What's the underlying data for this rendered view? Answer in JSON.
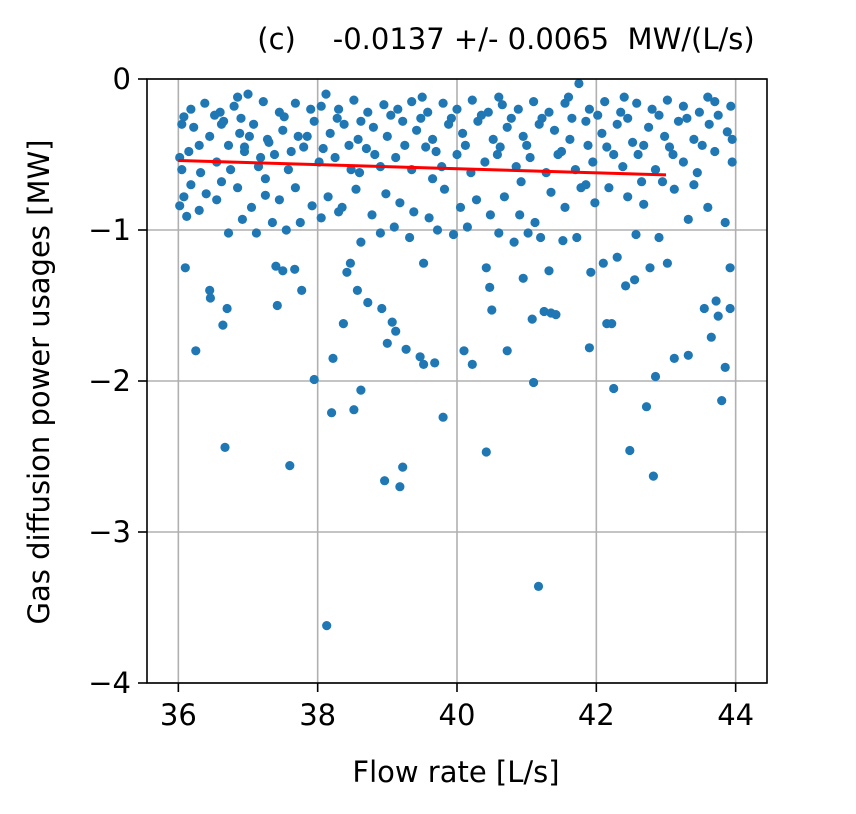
{
  "chart_data": {
    "type": "scatter",
    "title": "(c)    -0.0137 +/- 0.0065  MW/(L/s)",
    "xlabel": "Flow rate [L/s]",
    "ylabel": "Gas diffusion power usages [MW]",
    "xlim": [
      35.55,
      44.45
    ],
    "ylim": [
      -4,
      0
    ],
    "xticks": [
      36,
      38,
      40,
      42,
      44
    ],
    "yticks": [
      0,
      -1,
      -2,
      -3,
      -4
    ],
    "xtick_labels": [
      "36",
      "38",
      "40",
      "42",
      "44"
    ],
    "ytick_labels": [
      "0",
      "−1",
      "−2",
      "−3",
      "−4"
    ],
    "grid": true,
    "colors": {
      "points": "#1f77b4",
      "fit": "#ff0000",
      "grid": "#b0b0b0"
    },
    "fit_line": {
      "x": [
        36.0,
        43.0
      ],
      "y": [
        -0.54,
        -0.635
      ]
    },
    "series": [
      {
        "points": [
          [
            36.02,
            -0.84
          ],
          [
            36.1,
            -1.25
          ],
          [
            36.25,
            -1.8
          ],
          [
            36.45,
            -1.4
          ],
          [
            36.46,
            -1.45
          ],
          [
            36.64,
            -1.63
          ],
          [
            36.67,
            -2.44
          ],
          [
            36.7,
            -1.52
          ],
          [
            37.4,
            -1.24
          ],
          [
            37.42,
            -1.5
          ],
          [
            37.5,
            -1.27
          ],
          [
            37.6,
            -2.56
          ],
          [
            37.67,
            -1.26
          ],
          [
            37.77,
            -1.4
          ],
          [
            37.95,
            -1.99
          ],
          [
            38.13,
            -3.62
          ],
          [
            38.2,
            -2.21
          ],
          [
            38.22,
            -1.85
          ],
          [
            38.37,
            -1.62
          ],
          [
            38.47,
            -1.22
          ],
          [
            38.52,
            -2.19
          ],
          [
            38.57,
            -1.4
          ],
          [
            38.62,
            -2.06
          ],
          [
            38.72,
            -1.48
          ],
          [
            38.92,
            -1.52
          ],
          [
            38.96,
            -2.66
          ],
          [
            39.0,
            -1.75
          ],
          [
            39.07,
            -1.61
          ],
          [
            39.12,
            -1.67
          ],
          [
            39.18,
            -2.7
          ],
          [
            39.22,
            -2.57
          ],
          [
            39.27,
            -1.79
          ],
          [
            39.47,
            -1.84
          ],
          [
            39.52,
            -1.89
          ],
          [
            39.68,
            -1.88
          ],
          [
            39.8,
            -2.24
          ],
          [
            40.1,
            -1.8
          ],
          [
            40.22,
            -1.89
          ],
          [
            40.42,
            -2.47
          ],
          [
            40.47,
            -1.38
          ],
          [
            40.5,
            -1.53
          ],
          [
            40.72,
            -1.8
          ],
          [
            40.95,
            -1.32
          ],
          [
            41.08,
            -1.59
          ],
          [
            41.1,
            -2.01
          ],
          [
            41.17,
            -3.36
          ],
          [
            41.25,
            -1.54
          ],
          [
            41.35,
            -1.55
          ],
          [
            41.42,
            -1.56
          ],
          [
            41.9,
            -1.78
          ],
          [
            42.15,
            -1.62
          ],
          [
            42.22,
            -1.62
          ],
          [
            42.25,
            -2.05
          ],
          [
            42.42,
            -1.37
          ],
          [
            42.48,
            -2.46
          ],
          [
            42.55,
            -1.33
          ],
          [
            42.72,
            -2.17
          ],
          [
            42.82,
            -2.63
          ],
          [
            42.85,
            -1.97
          ],
          [
            43.12,
            -1.85
          ],
          [
            43.32,
            -1.83
          ],
          [
            43.65,
            -1.71
          ],
          [
            43.75,
            -1.57
          ],
          [
            43.8,
            -2.13
          ],
          [
            43.85,
            -1.91
          ],
          [
            43.92,
            -1.52
          ],
          [
            43.72,
            -1.47
          ],
          [
            43.55,
            -1.52
          ],
          [
            43.02,
            -1.22
          ],
          [
            42.9,
            -1.05
          ],
          [
            42.77,
            -1.25
          ],
          [
            42.57,
            -1.03
          ],
          [
            42.3,
            -1.18
          ],
          [
            42.1,
            -1.22
          ],
          [
            41.92,
            -1.28
          ],
          [
            41.72,
            -1.05
          ],
          [
            41.52,
            -1.07
          ],
          [
            41.32,
            -1.27
          ],
          [
            41.2,
            -1.05
          ],
          [
            41.02,
            -1.02
          ],
          [
            40.82,
            -1.08
          ],
          [
            40.6,
            -1.02
          ],
          [
            40.42,
            -1.25
          ],
          [
            40.15,
            -0.98
          ],
          [
            39.95,
            -1.03
          ],
          [
            39.72,
            -1.0
          ],
          [
            39.52,
            -1.22
          ],
          [
            39.32,
            -1.05
          ],
          [
            39.1,
            -0.98
          ],
          [
            38.9,
            -1.02
          ],
          [
            38.62,
            -1.08
          ],
          [
            38.42,
            -1.28
          ],
          [
            38.3,
            -0.88
          ],
          [
            38.05,
            -0.92
          ],
          [
            37.75,
            -0.95
          ],
          [
            37.55,
            -1.0
          ],
          [
            37.35,
            -0.95
          ],
          [
            37.12,
            -1.02
          ],
          [
            36.92,
            -0.93
          ],
          [
            36.72,
            -1.02
          ],
          [
            36.55,
            -0.8
          ],
          [
            36.3,
            -0.87
          ],
          [
            36.12,
            -0.91
          ],
          [
            36.05,
            -0.6
          ],
          [
            43.92,
            -1.25
          ],
          [
            43.85,
            -0.95
          ],
          [
            43.6,
            -0.85
          ],
          [
            43.32,
            -0.93
          ],
          [
            43.12,
            -0.73
          ],
          [
            42.95,
            -0.68
          ],
          [
            42.68,
            -0.83
          ],
          [
            42.45,
            -0.78
          ],
          [
            42.18,
            -0.72
          ],
          [
            41.98,
            -0.82
          ],
          [
            41.78,
            -0.72
          ],
          [
            41.55,
            -0.85
          ],
          [
            41.35,
            -0.75
          ],
          [
            41.12,
            -0.95
          ],
          [
            40.9,
            -0.9
          ],
          [
            40.68,
            -0.78
          ],
          [
            40.48,
            -0.9
          ],
          [
            40.28,
            -0.8
          ],
          [
            40.05,
            -0.85
          ],
          [
            39.82,
            -0.73
          ],
          [
            39.6,
            -0.92
          ],
          [
            39.38,
            -0.88
          ],
          [
            39.18,
            -0.82
          ],
          [
            38.98,
            -0.76
          ],
          [
            38.78,
            -0.9
          ],
          [
            38.55,
            -0.73
          ],
          [
            38.35,
            -0.85
          ],
          [
            38.15,
            -0.78
          ],
          [
            37.92,
            -0.84
          ],
          [
            37.68,
            -0.72
          ],
          [
            37.45,
            -0.8
          ],
          [
            37.25,
            -0.77
          ],
          [
            37.05,
            -0.85
          ],
          [
            36.85,
            -0.72
          ],
          [
            36.62,
            -0.68
          ],
          [
            36.4,
            -0.76
          ],
          [
            36.18,
            -0.7
          ],
          [
            36.08,
            -0.78
          ],
          [
            43.95,
            -0.55
          ],
          [
            43.7,
            -0.48
          ],
          [
            43.45,
            -0.62
          ],
          [
            43.25,
            -0.55
          ],
          [
            43.05,
            -0.45
          ],
          [
            42.85,
            -0.6
          ],
          [
            42.6,
            -0.5
          ],
          [
            42.38,
            -0.58
          ],
          [
            42.15,
            -0.45
          ],
          [
            41.95,
            -0.55
          ],
          [
            41.7,
            -0.6
          ],
          [
            41.5,
            -0.48
          ],
          [
            41.28,
            -0.62
          ],
          [
            41.05,
            -0.52
          ],
          [
            40.85,
            -0.58
          ],
          [
            40.62,
            -0.45
          ],
          [
            40.4,
            -0.55
          ],
          [
            40.2,
            -0.62
          ],
          [
            40.0,
            -0.5
          ],
          [
            39.78,
            -0.58
          ],
          [
            39.55,
            -0.45
          ],
          [
            39.35,
            -0.6
          ],
          [
            39.12,
            -0.52
          ],
          [
            38.9,
            -0.58
          ],
          [
            38.7,
            -0.46
          ],
          [
            38.48,
            -0.6
          ],
          [
            38.25,
            -0.52
          ],
          [
            38.02,
            -0.55
          ],
          [
            37.8,
            -0.45
          ],
          [
            37.58,
            -0.6
          ],
          [
            37.38,
            -0.5
          ],
          [
            37.15,
            -0.58
          ],
          [
            36.95,
            -0.48
          ],
          [
            36.75,
            -0.6
          ],
          [
            36.55,
            -0.55
          ],
          [
            36.32,
            -0.62
          ],
          [
            36.15,
            -0.48
          ],
          [
            36.02,
            -0.52
          ],
          [
            43.88,
            -0.35
          ],
          [
            43.62,
            -0.3
          ],
          [
            43.4,
            -0.4
          ],
          [
            43.18,
            -0.28
          ],
          [
            42.98,
            -0.38
          ],
          [
            42.75,
            -0.32
          ],
          [
            42.52,
            -0.42
          ],
          [
            42.3,
            -0.3
          ],
          [
            42.08,
            -0.36
          ],
          [
            41.85,
            -0.28
          ],
          [
            41.62,
            -0.4
          ],
          [
            41.4,
            -0.34
          ],
          [
            41.18,
            -0.3
          ],
          [
            40.95,
            -0.38
          ],
          [
            40.72,
            -0.32
          ],
          [
            40.52,
            -0.4
          ],
          [
            40.3,
            -0.28
          ],
          [
            40.08,
            -0.36
          ],
          [
            39.88,
            -0.3
          ],
          [
            39.65,
            -0.4
          ],
          [
            39.42,
            -0.34
          ],
          [
            39.22,
            -0.28
          ],
          [
            39.0,
            -0.38
          ],
          [
            38.8,
            -0.32
          ],
          [
            38.58,
            -0.4
          ],
          [
            38.38,
            -0.3
          ],
          [
            38.18,
            -0.36
          ],
          [
            37.95,
            -0.28
          ],
          [
            37.72,
            -0.38
          ],
          [
            37.5,
            -0.34
          ],
          [
            37.28,
            -0.4
          ],
          [
            37.08,
            -0.3
          ],
          [
            36.88,
            -0.36
          ],
          [
            36.65,
            -0.28
          ],
          [
            36.45,
            -0.38
          ],
          [
            36.22,
            -0.32
          ],
          [
            36.05,
            -0.3
          ],
          [
            43.93,
            -0.18
          ],
          [
            43.7,
            -0.15
          ],
          [
            43.48,
            -0.22
          ],
          [
            43.25,
            -0.18
          ],
          [
            43.02,
            -0.14
          ],
          [
            42.8,
            -0.2
          ],
          [
            42.58,
            -0.16
          ],
          [
            42.35,
            -0.22
          ],
          [
            42.12,
            -0.15
          ],
          [
            41.9,
            -0.2
          ],
          [
            41.75,
            -0.03
          ],
          [
            41.55,
            -0.16
          ],
          [
            41.32,
            -0.22
          ],
          [
            41.1,
            -0.15
          ],
          [
            40.88,
            -0.2
          ],
          [
            40.65,
            -0.17
          ],
          [
            40.45,
            -0.22
          ],
          [
            40.22,
            -0.14
          ],
          [
            40.0,
            -0.2
          ],
          [
            39.8,
            -0.16
          ],
          [
            39.58,
            -0.22
          ],
          [
            39.35,
            -0.15
          ],
          [
            39.15,
            -0.2
          ],
          [
            38.95,
            -0.17
          ],
          [
            38.72,
            -0.22
          ],
          [
            38.52,
            -0.14
          ],
          [
            38.3,
            -0.2
          ],
          [
            38.12,
            -0.1
          ],
          [
            37.9,
            -0.2
          ],
          [
            37.68,
            -0.16
          ],
          [
            37.45,
            -0.22
          ],
          [
            37.22,
            -0.15
          ],
          [
            37.0,
            -0.1
          ],
          [
            36.8,
            -0.18
          ],
          [
            36.6,
            -0.22
          ],
          [
            36.38,
            -0.16
          ],
          [
            36.18,
            -0.2
          ],
          [
            36.08,
            -0.25
          ],
          [
            36.95,
            -0.45
          ],
          [
            37.02,
            -0.38
          ],
          [
            37.18,
            -0.52
          ],
          [
            37.3,
            -0.42
          ],
          [
            37.52,
            -0.25
          ],
          [
            37.62,
            -0.48
          ],
          [
            37.85,
            -0.38
          ],
          [
            38.08,
            -0.46
          ],
          [
            38.28,
            -0.26
          ],
          [
            38.45,
            -0.44
          ],
          [
            38.62,
            -0.28
          ],
          [
            38.82,
            -0.5
          ],
          [
            39.05,
            -0.24
          ],
          [
            39.25,
            -0.44
          ],
          [
            39.48,
            -0.26
          ],
          [
            39.7,
            -0.48
          ],
          [
            39.92,
            -0.26
          ],
          [
            40.12,
            -0.44
          ],
          [
            40.35,
            -0.24
          ],
          [
            40.58,
            -0.5
          ],
          [
            40.78,
            -0.26
          ],
          [
            41.0,
            -0.44
          ],
          [
            41.22,
            -0.26
          ],
          [
            41.45,
            -0.5
          ],
          [
            41.65,
            -0.26
          ],
          [
            41.88,
            -0.44
          ],
          [
            42.02,
            -0.24
          ],
          [
            42.25,
            -0.5
          ],
          [
            42.45,
            -0.26
          ],
          [
            42.68,
            -0.44
          ],
          [
            42.9,
            -0.24
          ],
          [
            43.1,
            -0.5
          ],
          [
            43.3,
            -0.26
          ],
          [
            43.52,
            -0.44
          ],
          [
            43.75,
            -0.24
          ],
          [
            43.95,
            -0.4
          ],
          [
            36.3,
            -0.44
          ],
          [
            36.52,
            -0.24
          ],
          [
            36.72,
            -0.44
          ],
          [
            36.9,
            -0.26
          ],
          [
            38.6,
            -0.62
          ],
          [
            39.65,
            -0.66
          ],
          [
            40.92,
            -0.68
          ],
          [
            41.85,
            -0.7
          ],
          [
            42.65,
            -0.68
          ],
          [
            43.4,
            -0.7
          ],
          [
            37.25,
            -0.66
          ],
          [
            36.62,
            -0.3
          ],
          [
            41.6,
            -0.12
          ],
          [
            40.6,
            -0.12
          ],
          [
            39.5,
            -0.12
          ],
          [
            38.05,
            -0.18
          ],
          [
            42.4,
            -0.12
          ],
          [
            43.6,
            -0.12
          ],
          [
            36.85,
            -0.12
          ]
        ]
      }
    ]
  }
}
